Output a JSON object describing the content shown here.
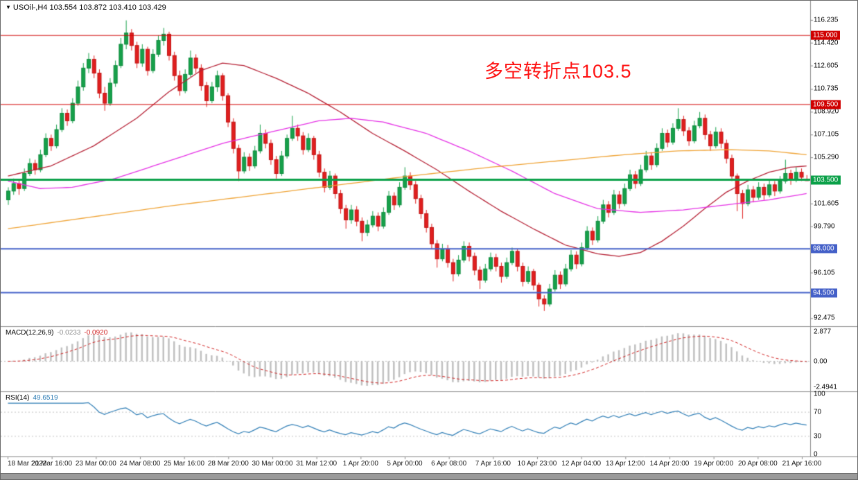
{
  "window": {
    "title": "USOil-,H4 103.554 103.872 103.410 103.429",
    "symbol": "USOil-",
    "timeframe": "H4"
  },
  "annotation": {
    "text": "多空转折点103.5",
    "color": "#fe1010"
  },
  "macd_panel": {
    "label": "MACD(12,26,9)",
    "value_main": "-0.0233",
    "value_signal": "-0.0920",
    "scale_top": "2.877",
    "scale_zero": "0.00",
    "scale_bottom": "-2.4941",
    "range": [
      -2.4941,
      2.877
    ],
    "histogram_color": "#c0c0c0",
    "signal_color": "#d02020"
  },
  "rsi_panel": {
    "label": "RSI(14)",
    "value": "49.6519",
    "scale_labels": [
      {
        "v": 100,
        "label": "100"
      },
      {
        "v": 70,
        "label": "70"
      },
      {
        "v": 30,
        "label": "30"
      },
      {
        "v": 0,
        "label": "0"
      }
    ],
    "dotted_levels": [
      70,
      30
    ],
    "line_color": "#2e7db5"
  },
  "chart_data": {
    "type": "candlestick",
    "title": "USOil- H4",
    "price_range": [
      92.05,
      117.55
    ],
    "colors": {
      "bull": "#16a04a",
      "bear": "#e01f1f",
      "bull_stroke": "#0d8a3c",
      "bear_stroke": "#c01414"
    },
    "y_axis_ticks": [
      {
        "v": 116.235,
        "label": "116.235"
      },
      {
        "v": 114.42,
        "label": "114.420"
      },
      {
        "v": 112.605,
        "label": "112.605"
      },
      {
        "v": 110.735,
        "label": "110.735"
      },
      {
        "v": 108.92,
        "label": "108.920"
      },
      {
        "v": 107.105,
        "label": "107.105"
      },
      {
        "v": 105.29,
        "label": "105.290"
      },
      {
        "v": 101.605,
        "label": "101.605"
      },
      {
        "v": 99.79,
        "label": "99.790"
      },
      {
        "v": 96.105,
        "label": "96.105"
      },
      {
        "v": 92.475,
        "label": "92.475"
      }
    ],
    "levels": [
      {
        "v": 115.0,
        "label": "115.000",
        "color": "#d00000",
        "width": 1
      },
      {
        "v": 109.5,
        "label": "109.500",
        "color": "#d00000",
        "width": 1
      },
      {
        "v": 103.5,
        "label": "103.500",
        "color": "#0aa048",
        "width": 3
      },
      {
        "v": 98.0,
        "label": "98.000",
        "color": "#4460c8",
        "width": 2
      },
      {
        "v": 94.5,
        "label": "94.500",
        "color": "#4460c8",
        "width": 2
      }
    ],
    "x_axis_labels": [
      "18 Mar 2022",
      "21 Mar 16:00",
      "23 Mar 00:00",
      "24 Mar 08:00",
      "25 Mar 16:00",
      "28 Mar 20:00",
      "30 Mar 00:00",
      "31 Mar 12:00",
      "1 Apr 20:00",
      "5 Apr 00:00",
      "6 Apr 08:00",
      "7 Apr 16:00",
      "10 Apr 23:00",
      "12 Apr 04:00",
      "13 Apr 12:00",
      "14 Apr 20:00",
      "19 Apr 00:00",
      "20 Apr 08:00",
      "21 Apr 16:00"
    ],
    "ma_overlays": [
      {
        "name": "ma-medium",
        "color": "#b52034",
        "points": [
          [
            0,
            103.8
          ],
          [
            8,
            104.6
          ],
          [
            16,
            106.2
          ],
          [
            24,
            108.4
          ],
          [
            30,
            110.5
          ],
          [
            36,
            112.2
          ],
          [
            40,
            112.8
          ],
          [
            44,
            112.6
          ],
          [
            50,
            111.6
          ],
          [
            56,
            110.4
          ],
          [
            62,
            108.9
          ],
          [
            68,
            107.2
          ],
          [
            74,
            105.8
          ],
          [
            80,
            104.3
          ],
          [
            86,
            102.6
          ],
          [
            92,
            101.0
          ],
          [
            98,
            99.6
          ],
          [
            104,
            98.3
          ],
          [
            110,
            97.6
          ],
          [
            114,
            97.4
          ],
          [
            118,
            97.7
          ],
          [
            122,
            98.6
          ],
          [
            126,
            99.8
          ],
          [
            130,
            101.2
          ],
          [
            134,
            102.5
          ],
          [
            138,
            103.4
          ],
          [
            142,
            104.1
          ],
          [
            146,
            104.5
          ],
          [
            149,
            104.6
          ]
        ]
      },
      {
        "name": "ma-slow",
        "color": "#e531e5",
        "points": [
          [
            0,
            103.4
          ],
          [
            6,
            102.8
          ],
          [
            12,
            102.9
          ],
          [
            20,
            103.6
          ],
          [
            30,
            105.0
          ],
          [
            40,
            106.4
          ],
          [
            50,
            107.4
          ],
          [
            58,
            108.2
          ],
          [
            64,
            108.4
          ],
          [
            70,
            108.1
          ],
          [
            78,
            107.2
          ],
          [
            86,
            105.8
          ],
          [
            94,
            104.2
          ],
          [
            102,
            102.4
          ],
          [
            110,
            101.2
          ],
          [
            118,
            100.9
          ],
          [
            126,
            101.1
          ],
          [
            134,
            101.5
          ],
          [
            142,
            101.9
          ],
          [
            149,
            102.4
          ]
        ]
      },
      {
        "name": "ma-long",
        "color": "#efa335",
        "points": [
          [
            0,
            99.6
          ],
          [
            15,
            100.5
          ],
          [
            30,
            101.4
          ],
          [
            45,
            102.2
          ],
          [
            60,
            103.0
          ],
          [
            75,
            103.8
          ],
          [
            90,
            104.5
          ],
          [
            105,
            105.1
          ],
          [
            115,
            105.5
          ],
          [
            125,
            105.8
          ],
          [
            135,
            105.9
          ],
          [
            142,
            105.8
          ],
          [
            149,
            105.5
          ]
        ]
      }
    ],
    "candles": [
      [
        101.9,
        102.9,
        101.5,
        102.6
      ],
      [
        102.6,
        103.6,
        102.3,
        103.2
      ],
      [
        103.2,
        103.5,
        102.3,
        102.8
      ],
      [
        102.8,
        104.4,
        102.6,
        104.0
      ],
      [
        104.0,
        105.2,
        103.8,
        104.8
      ],
      [
        104.8,
        105.1,
        103.9,
        104.3
      ],
      [
        104.3,
        105.9,
        104.1,
        105.5
      ],
      [
        105.5,
        107.2,
        105.3,
        106.8
      ],
      [
        106.8,
        107.1,
        105.8,
        106.2
      ],
      [
        106.2,
        107.9,
        106.0,
        107.5
      ],
      [
        107.5,
        109.2,
        107.3,
        108.8
      ],
      [
        108.8,
        109.1,
        107.8,
        108.2
      ],
      [
        108.2,
        110.0,
        108.0,
        109.6
      ],
      [
        109.6,
        111.4,
        109.4,
        110.9
      ],
      [
        110.9,
        112.8,
        110.6,
        112.4
      ],
      [
        112.4,
        113.6,
        112.0,
        113.1
      ],
      [
        113.1,
        113.4,
        111.6,
        112.0
      ],
      [
        112.0,
        112.3,
        110.0,
        110.4
      ],
      [
        110.4,
        110.9,
        109.0,
        109.6
      ],
      [
        109.6,
        111.6,
        109.4,
        111.2
      ],
      [
        111.2,
        113.0,
        110.9,
        112.6
      ],
      [
        112.6,
        114.8,
        112.4,
        114.3
      ],
      [
        114.3,
        116.2,
        113.9,
        115.2
      ],
      [
        115.2,
        115.5,
        113.8,
        114.2
      ],
      [
        114.2,
        114.5,
        112.4,
        112.8
      ],
      [
        112.8,
        114.3,
        112.5,
        113.9
      ],
      [
        113.9,
        114.1,
        111.8,
        112.2
      ],
      [
        112.2,
        113.9,
        112.0,
        113.5
      ],
      [
        113.5,
        115.0,
        113.3,
        114.6
      ],
      [
        114.6,
        115.6,
        114.2,
        115.1
      ],
      [
        115.1,
        115.3,
        113.0,
        113.4
      ],
      [
        113.4,
        113.7,
        111.4,
        111.8
      ],
      [
        111.8,
        112.2,
        110.2,
        110.6
      ],
      [
        110.6,
        112.3,
        110.4,
        111.9
      ],
      [
        111.9,
        113.8,
        111.7,
        113.2
      ],
      [
        113.2,
        113.5,
        112.0,
        112.4
      ],
      [
        112.4,
        112.7,
        110.6,
        111.0
      ],
      [
        111.0,
        111.3,
        109.3,
        109.8
      ],
      [
        109.8,
        111.3,
        109.6,
        110.9
      ],
      [
        110.9,
        112.2,
        110.5,
        111.8
      ],
      [
        111.8,
        112.0,
        109.8,
        110.2
      ],
      [
        110.2,
        110.4,
        107.7,
        108.1
      ],
      [
        108.1,
        108.4,
        105.6,
        106.0
      ],
      [
        106.0,
        106.3,
        103.4,
        104.2
      ],
      [
        104.2,
        105.7,
        104.0,
        105.3
      ],
      [
        105.3,
        105.6,
        104.2,
        104.6
      ],
      [
        104.6,
        106.2,
        104.4,
        105.8
      ],
      [
        105.8,
        107.9,
        105.6,
        107.2
      ],
      [
        107.2,
        107.5,
        106.0,
        106.4
      ],
      [
        106.4,
        106.7,
        104.7,
        105.1
      ],
      [
        105.1,
        105.4,
        103.6,
        104.0
      ],
      [
        104.0,
        105.8,
        103.8,
        105.4
      ],
      [
        105.4,
        107.1,
        105.2,
        106.8
      ],
      [
        106.8,
        108.6,
        106.6,
        107.6
      ],
      [
        107.6,
        107.9,
        106.6,
        107.0
      ],
      [
        107.0,
        107.3,
        105.5,
        105.9
      ],
      [
        105.9,
        107.2,
        105.7,
        106.8
      ],
      [
        106.8,
        107.0,
        105.1,
        105.5
      ],
      [
        105.5,
        105.8,
        103.7,
        104.1
      ],
      [
        104.1,
        104.4,
        102.5,
        102.9
      ],
      [
        102.9,
        104.2,
        102.7,
        103.8
      ],
      [
        103.8,
        104.0,
        102.0,
        102.4
      ],
      [
        102.4,
        102.7,
        100.8,
        101.2
      ],
      [
        101.2,
        101.5,
        99.6,
        100.3
      ],
      [
        100.3,
        101.5,
        100.0,
        101.1
      ],
      [
        101.1,
        101.4,
        99.8,
        100.2
      ],
      [
        100.2,
        100.5,
        98.6,
        99.3
      ],
      [
        99.3,
        100.3,
        99.0,
        99.9
      ],
      [
        99.9,
        101.0,
        99.7,
        100.6
      ],
      [
        100.6,
        100.9,
        99.4,
        99.8
      ],
      [
        99.8,
        101.3,
        99.6,
        100.9
      ],
      [
        100.9,
        102.6,
        100.7,
        102.2
      ],
      [
        102.2,
        102.5,
        101.1,
        101.5
      ],
      [
        101.5,
        103.3,
        101.3,
        102.9
      ],
      [
        102.9,
        104.5,
        102.7,
        103.8
      ],
      [
        103.8,
        104.1,
        102.7,
        103.1
      ],
      [
        103.1,
        103.4,
        101.6,
        102.0
      ],
      [
        102.0,
        102.3,
        100.4,
        100.8
      ],
      [
        100.8,
        101.1,
        99.3,
        99.7
      ],
      [
        99.7,
        100.0,
        98.0,
        98.4
      ],
      [
        98.4,
        98.7,
        96.5,
        97.2
      ],
      [
        97.2,
        98.4,
        97.0,
        98.0
      ],
      [
        98.0,
        98.3,
        96.5,
        96.9
      ],
      [
        96.9,
        97.2,
        95.4,
        96.0
      ],
      [
        96.0,
        97.5,
        95.8,
        97.1
      ],
      [
        97.1,
        98.6,
        96.9,
        98.2
      ],
      [
        98.2,
        98.5,
        97.0,
        97.4
      ],
      [
        97.4,
        97.7,
        95.9,
        96.3
      ],
      [
        96.3,
        96.6,
        94.8,
        95.5
      ],
      [
        95.5,
        96.8,
        95.3,
        96.4
      ],
      [
        96.4,
        97.7,
        96.2,
        97.3
      ],
      [
        97.3,
        97.6,
        96.2,
        96.6
      ],
      [
        96.6,
        96.9,
        95.3,
        95.8
      ],
      [
        95.8,
        97.3,
        95.6,
        96.9
      ],
      [
        96.9,
        98.1,
        96.7,
        97.8
      ],
      [
        97.8,
        98.0,
        96.2,
        96.6
      ],
      [
        96.6,
        96.9,
        95.0,
        95.4
      ],
      [
        95.4,
        96.6,
        95.2,
        96.2
      ],
      [
        96.2,
        96.4,
        94.7,
        95.1
      ],
      [
        95.1,
        95.3,
        93.4,
        94.0
      ],
      [
        94.0,
        94.3,
        93.05,
        93.6
      ],
      [
        93.6,
        95.2,
        93.4,
        94.8
      ],
      [
        94.8,
        96.3,
        94.6,
        95.9
      ],
      [
        95.9,
        96.2,
        94.8,
        95.2
      ],
      [
        95.2,
        96.8,
        95.0,
        96.4
      ],
      [
        96.4,
        97.9,
        96.2,
        97.5
      ],
      [
        97.5,
        97.8,
        96.4,
        96.8
      ],
      [
        96.8,
        98.5,
        96.6,
        98.1
      ],
      [
        98.1,
        99.8,
        97.9,
        99.4
      ],
      [
        99.4,
        99.7,
        98.3,
        98.7
      ],
      [
        98.7,
        100.6,
        98.5,
        100.2
      ],
      [
        100.2,
        101.9,
        100.0,
        101.5
      ],
      [
        101.5,
        101.8,
        100.5,
        100.9
      ],
      [
        100.9,
        102.7,
        100.7,
        102.3
      ],
      [
        102.3,
        102.6,
        101.2,
        101.6
      ],
      [
        101.6,
        103.2,
        101.4,
        102.8
      ],
      [
        102.8,
        104.3,
        102.6,
        103.9
      ],
      [
        103.9,
        104.2,
        102.8,
        103.2
      ],
      [
        103.2,
        104.7,
        103.0,
        104.3
      ],
      [
        104.3,
        105.8,
        104.1,
        105.4
      ],
      [
        105.4,
        105.7,
        104.3,
        104.7
      ],
      [
        104.7,
        106.4,
        104.5,
        106.0
      ],
      [
        106.0,
        107.6,
        105.8,
        107.2
      ],
      [
        107.2,
        107.5,
        106.1,
        106.5
      ],
      [
        106.5,
        108.0,
        106.3,
        107.6
      ],
      [
        107.6,
        109.2,
        107.4,
        108.3
      ],
      [
        108.3,
        108.6,
        107.0,
        107.4
      ],
      [
        107.4,
        107.7,
        106.2,
        106.6
      ],
      [
        106.6,
        108.2,
        106.4,
        107.8
      ],
      [
        107.8,
        108.9,
        107.6,
        108.4
      ],
      [
        108.4,
        108.7,
        106.7,
        107.1
      ],
      [
        107.1,
        107.4,
        105.8,
        106.2
      ],
      [
        106.2,
        107.7,
        106.0,
        107.3
      ],
      [
        107.3,
        107.6,
        106.0,
        106.4
      ],
      [
        106.4,
        106.7,
        104.8,
        105.2
      ],
      [
        105.2,
        105.5,
        103.4,
        103.8
      ],
      [
        103.8,
        104.0,
        101.0,
        102.4
      ],
      [
        102.4,
        102.7,
        100.4,
        101.6
      ],
      [
        101.6,
        103.1,
        101.4,
        102.7
      ],
      [
        102.7,
        103.0,
        101.7,
        102.1
      ],
      [
        102.1,
        103.3,
        101.9,
        102.9
      ],
      [
        102.9,
        103.2,
        101.9,
        102.3
      ],
      [
        102.3,
        103.5,
        102.1,
        103.1
      ],
      [
        103.1,
        103.4,
        102.2,
        102.6
      ],
      [
        102.6,
        103.8,
        102.4,
        103.4
      ],
      [
        103.4,
        105.1,
        103.2,
        104.0
      ],
      [
        104.0,
        104.3,
        103.1,
        103.5
      ],
      [
        103.5,
        104.5,
        103.3,
        104.1
      ],
      [
        104.1,
        104.4,
        103.4,
        103.7
      ],
      [
        103.554,
        103.872,
        103.41,
        103.429
      ]
    ]
  }
}
